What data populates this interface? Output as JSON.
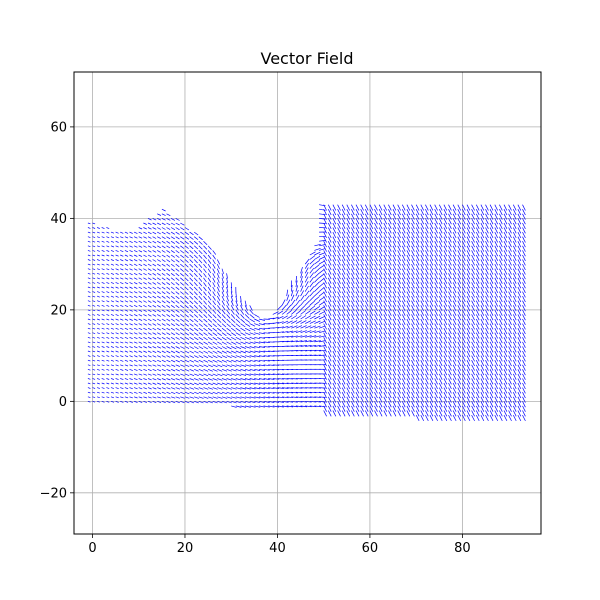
{
  "chart_data": {
    "type": "quiver",
    "title": "Vector Field",
    "xlabel": "",
    "ylabel": "",
    "xlim": [
      -4,
      97
    ],
    "ylim": [
      -29,
      72
    ],
    "x_ticks": [
      0,
      20,
      40,
      60,
      80
    ],
    "y_ticks": [
      -20,
      0,
      20,
      40,
      60
    ],
    "x_tick_labels": [
      "0",
      "20",
      "40",
      "60",
      "80"
    ],
    "y_tick_labels": [
      "−20",
      "0",
      "20",
      "40",
      "60"
    ],
    "grid": true,
    "legend": "none",
    "arrow_color": "#0000ff",
    "grid_spacing": 1,
    "domain": {
      "x_range": [
        -1,
        93
      ],
      "y_range": [
        -3,
        44
      ],
      "left_region_top_edge": [
        [
          0,
          39
        ],
        [
          3,
          38
        ],
        [
          8,
          37
        ],
        [
          12,
          40
        ],
        [
          15,
          42
        ],
        [
          18,
          40
        ],
        [
          22,
          37
        ],
        [
          26,
          33
        ],
        [
          29,
          28
        ],
        [
          31,
          25
        ],
        [
          34,
          21
        ],
        [
          36,
          18
        ],
        [
          38,
          18
        ],
        [
          40,
          20
        ],
        [
          43,
          25
        ],
        [
          46,
          30
        ],
        [
          48,
          34
        ],
        [
          49,
          38
        ],
        [
          49,
          43
        ]
      ],
      "right_region_top": 43,
      "bottom_edge": [
        [
          0,
          0
        ],
        [
          10,
          0
        ],
        [
          30,
          -1
        ],
        [
          50,
          -2
        ],
        [
          70,
          -3
        ],
        [
          90,
          -3
        ],
        [
          93,
          -3
        ]
      ]
    }
  }
}
